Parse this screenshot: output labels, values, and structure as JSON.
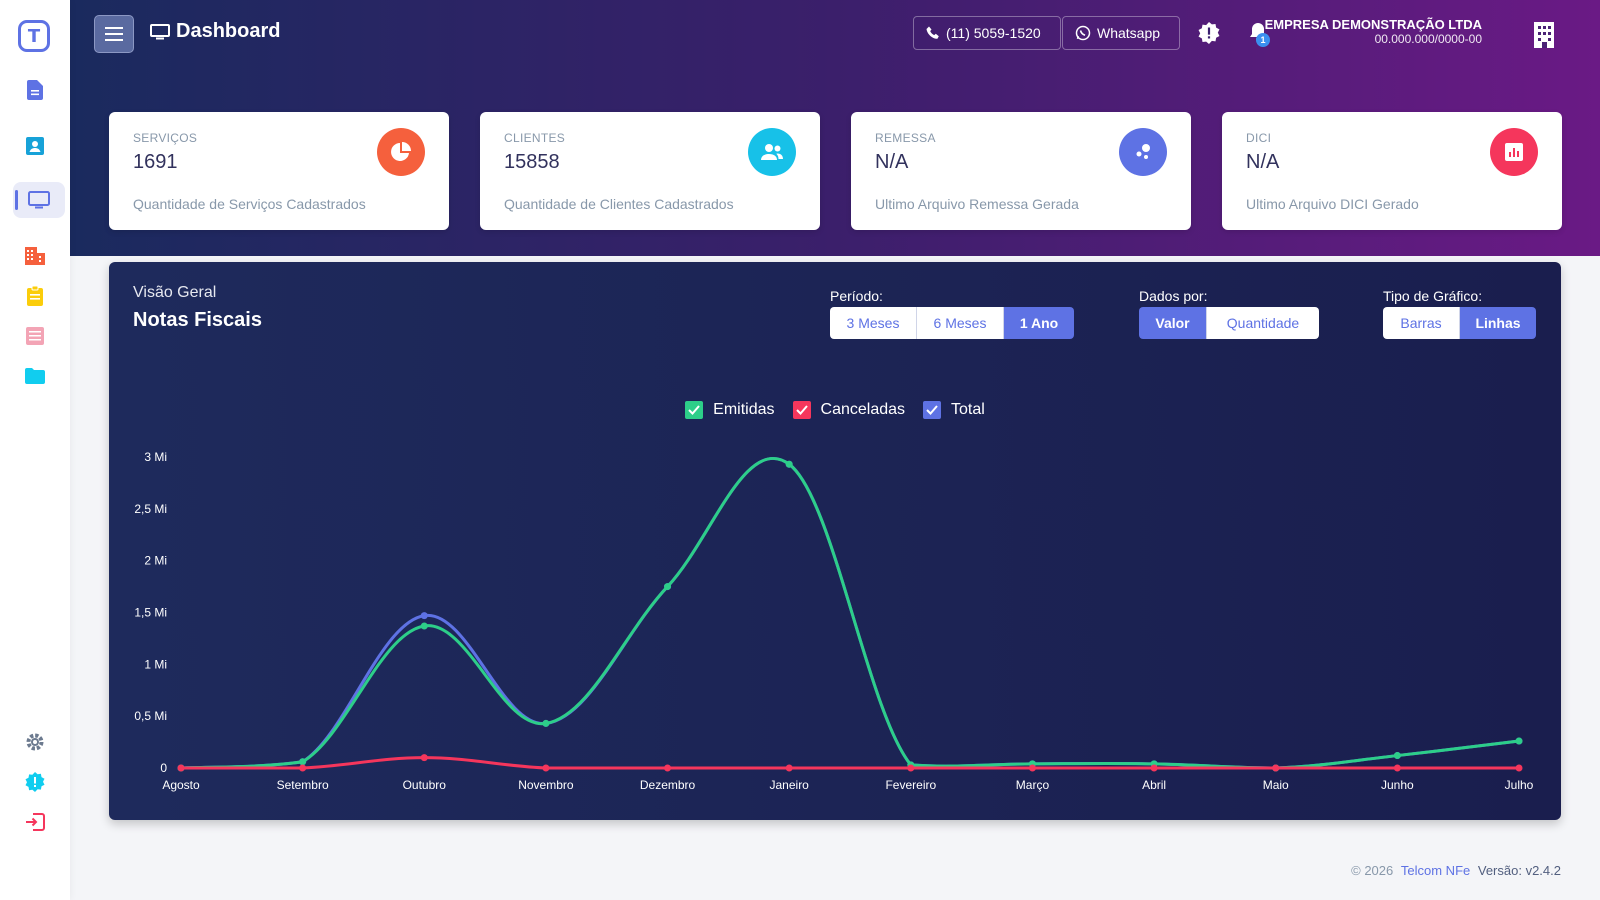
{
  "header": {
    "title": "Dashboard",
    "phone_label": "(11) 5059-1520",
    "whatsapp_label": "Whatsapp",
    "notification_count": "1",
    "company_name": "EMPRESA DEMONSTRAÇÃO LTDA",
    "company_cnpj": "00.000.000/0000-00"
  },
  "cards": [
    {
      "title": "SERVIÇOS",
      "value": "1691",
      "desc": "Quantidade de Serviços Cadastrados",
      "color": "#f5603d",
      "icon": "pie-chart-icon"
    },
    {
      "title": "CLIENTES",
      "value": "15858",
      "desc": "Quantidade de Clientes Cadastrados",
      "color": "#17c1e8",
      "icon": "users-icon"
    },
    {
      "title": "REMESSA",
      "value": "N/A",
      "desc": "Ultimo Arquivo Remessa Gerada",
      "color": "#5e72e4",
      "icon": "atom-icon"
    },
    {
      "title": "DICI",
      "value": "N/A",
      "desc": "Ultimo Arquivo DICI Gerado",
      "color": "#f5365c",
      "icon": "bar-chart-icon"
    }
  ],
  "panel": {
    "subtitle": "Visão Geral",
    "title": "Notas Fiscais",
    "period_label": "Período:",
    "period_options": [
      "3 Meses",
      "6 Meses",
      "1 Ano"
    ],
    "period_selected": "1 Ano",
    "data_label": "Dados por:",
    "data_options": [
      "Valor",
      "Quantidade"
    ],
    "data_selected": "Valor",
    "type_label": "Tipo de Gráfico:",
    "type_options": [
      "Barras",
      "Linhas"
    ],
    "type_selected": "Linhas"
  },
  "chart_data": {
    "type": "line",
    "categories": [
      "Agosto",
      "Setembro",
      "Outubro",
      "Novembro",
      "Dezembro",
      "Janeiro",
      "Fevereiro",
      "Março",
      "Abril",
      "Maio",
      "Junho",
      "Julho"
    ],
    "series": [
      {
        "name": "Emitidas",
        "color": "#2dce89",
        "values": [
          0,
          0.06,
          1.37,
          0.43,
          1.75,
          2.93,
          0.03,
          0.04,
          0.04,
          0,
          0.12,
          0.26
        ]
      },
      {
        "name": "Canceladas",
        "color": "#f5365c",
        "values": [
          0,
          0,
          0.1,
          0,
          0,
          0,
          0,
          0,
          0,
          0,
          0,
          0
        ]
      },
      {
        "name": "Total",
        "color": "#5e72e4",
        "values": [
          0,
          0.06,
          1.47,
          0.43,
          1.75,
          2.93,
          0.03,
          0.04,
          0.04,
          0,
          0.12,
          0.26
        ]
      }
    ],
    "y_ticks": [
      "0",
      "0,5 Mi",
      "1 Mi",
      "1,5 Mi",
      "2 Mi",
      "2,5 Mi",
      "3 Mi"
    ],
    "ylim": [
      0,
      3
    ],
    "grid": false,
    "legend": "top-center"
  },
  "footer": {
    "copyright": "© 2026",
    "brand": "Telcom NFe",
    "version": "Versão: v2.4.2"
  }
}
